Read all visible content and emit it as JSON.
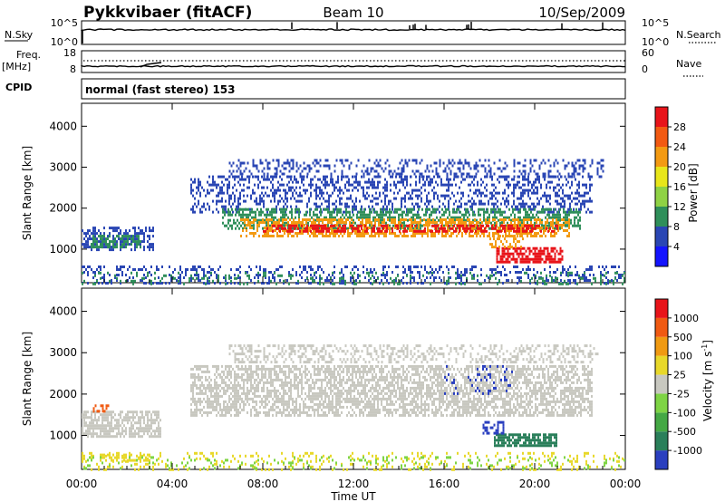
{
  "header": {
    "station": "Pykkvibaer (fitACF)",
    "beam": "Beam 10",
    "date": "10/Sep/2009"
  },
  "status_panels": {
    "nsky_label": "N.Sky",
    "nsky_ticks": [
      "10^5",
      "10^0"
    ],
    "nsearch_label": "N.Search",
    "nsearch_ticks": [
      "10^5",
      "10^0"
    ],
    "freq_label": "Freq.",
    "freq_unit": "[MHz]",
    "freq_ticks": [
      "18",
      "8"
    ],
    "nave_label": "Nave",
    "nave_ticks": [
      "60",
      "0"
    ],
    "cpid_label": "CPID",
    "cpid_text": "normal (fast stereo) 153"
  },
  "chart_data": [
    {
      "type": "heatmap",
      "name": "power-panel",
      "ylabel": "Slant Range [km]",
      "yticks": [
        1000,
        2000,
        3000,
        4000
      ],
      "ylim": [
        180,
        4560
      ],
      "x_hours_lim": [
        0,
        24
      ],
      "colorbar_label": "Power [dB]",
      "colorbar_ticks": [
        "4",
        "8",
        "12",
        "16",
        "20",
        "24",
        "28"
      ],
      "colorbar_colors": [
        "#1414ff",
        "#2a46b4",
        "#2f8f5a",
        "#8fd244",
        "#e8e61a",
        "#f39a12",
        "#f25a12",
        "#e8141a"
      ],
      "scatter_regions": [
        {
          "h0": 0.0,
          "h1": 3.2,
          "r0": 1000,
          "r1": 1550,
          "color": "#2a46b4",
          "density": 0.5
        },
        {
          "h0": 0.4,
          "h1": 2.6,
          "r0": 1050,
          "r1": 1350,
          "color": "#2f8f5a",
          "density": 0.5
        },
        {
          "h0": 4.8,
          "h1": 22.5,
          "r0": 1900,
          "r1": 2800,
          "color": "#2a46b4",
          "density": 0.35
        },
        {
          "h0": 6.2,
          "h1": 22.0,
          "r0": 1500,
          "r1": 2000,
          "color": "#2f8f5a",
          "density": 0.5
        },
        {
          "h0": 7.0,
          "h1": 21.5,
          "r0": 1350,
          "r1": 1750,
          "color": "#f39a12",
          "density": 0.55
        },
        {
          "h0": 8.0,
          "h1": 21.0,
          "r0": 1420,
          "r1": 1600,
          "color": "#e8141a",
          "density": 0.45
        },
        {
          "h0": 6.5,
          "h1": 23.0,
          "r0": 2750,
          "r1": 3200,
          "color": "#2a46b4",
          "density": 0.3
        },
        {
          "h0": 18.3,
          "h1": 21.2,
          "r0": 700,
          "r1": 1050,
          "color": "#e8141a",
          "density": 0.7
        },
        {
          "h0": 18.0,
          "h1": 19.5,
          "r0": 1050,
          "r1": 1350,
          "color": "#f39a12",
          "density": 0.4
        },
        {
          "h0": 0.0,
          "h1": 24.0,
          "r0": 180,
          "r1": 600,
          "color": "#2a46b4",
          "density": 0.25
        },
        {
          "h0": 0.0,
          "h1": 24.0,
          "r0": 180,
          "r1": 450,
          "color": "#2f8f5a",
          "density": 0.15
        }
      ]
    },
    {
      "type": "heatmap",
      "name": "velocity-panel",
      "ylabel": "Slant Range [km]",
      "yticks": [
        1000,
        2000,
        3000,
        4000
      ],
      "ylim": [
        180,
        4560
      ],
      "x_hours_lim": [
        0,
        24
      ],
      "xticks": [
        "00:00",
        "04:00",
        "08:00",
        "12:00",
        "16:00",
        "20:00",
        "00:00"
      ],
      "xlabel": "Time UT",
      "colorbar_label": "Velocity [m s",
      "colorbar_label_superscript": "-1",
      "colorbar_label_close": "]",
      "colorbar_ticks": [
        "1000",
        "500",
        "100",
        "25",
        "-25",
        "-100",
        "-500",
        "-1000"
      ],
      "colorbar_colors": [
        "#2a3fbf",
        "#2a7f5a",
        "#44a844",
        "#7ed444",
        "#c8c8c0",
        "#e8d82a",
        "#f09a12",
        "#f05a12",
        "#e8141a"
      ],
      "scatter_regions": [
        {
          "h0": 0.0,
          "h1": 3.5,
          "r0": 1000,
          "r1": 1600,
          "color": "#c8c8c0",
          "density": 0.7
        },
        {
          "h0": 4.8,
          "h1": 22.5,
          "r0": 1500,
          "r1": 2700,
          "color": "#c8c8c0",
          "density": 0.6
        },
        {
          "h0": 6.5,
          "h1": 22.8,
          "r0": 2800,
          "r1": 3200,
          "color": "#c8c8c0",
          "density": 0.35
        },
        {
          "h0": 18.2,
          "h1": 21.0,
          "r0": 750,
          "r1": 1050,
          "color": "#2a7f5a",
          "density": 0.8
        },
        {
          "h0": 17.7,
          "h1": 18.6,
          "r0": 1050,
          "r1": 1350,
          "color": "#2a3fbf",
          "density": 0.5
        },
        {
          "h0": 0.5,
          "h1": 1.2,
          "r0": 1600,
          "r1": 1750,
          "color": "#f05a12",
          "density": 0.6
        },
        {
          "h0": 0.8,
          "h1": 3.0,
          "r0": 420,
          "r1": 560,
          "color": "#e8d82a",
          "density": 0.6
        },
        {
          "h0": 0.0,
          "h1": 24.0,
          "r0": 180,
          "r1": 600,
          "color": "#e8d82a",
          "density": 0.15
        },
        {
          "h0": 0.0,
          "h1": 24.0,
          "r0": 180,
          "r1": 500,
          "color": "#7ed444",
          "density": 0.12
        },
        {
          "h0": 16.0,
          "h1": 19.0,
          "r0": 2000,
          "r1": 2700,
          "color": "#2a3fbf",
          "density": 0.1
        }
      ]
    }
  ]
}
